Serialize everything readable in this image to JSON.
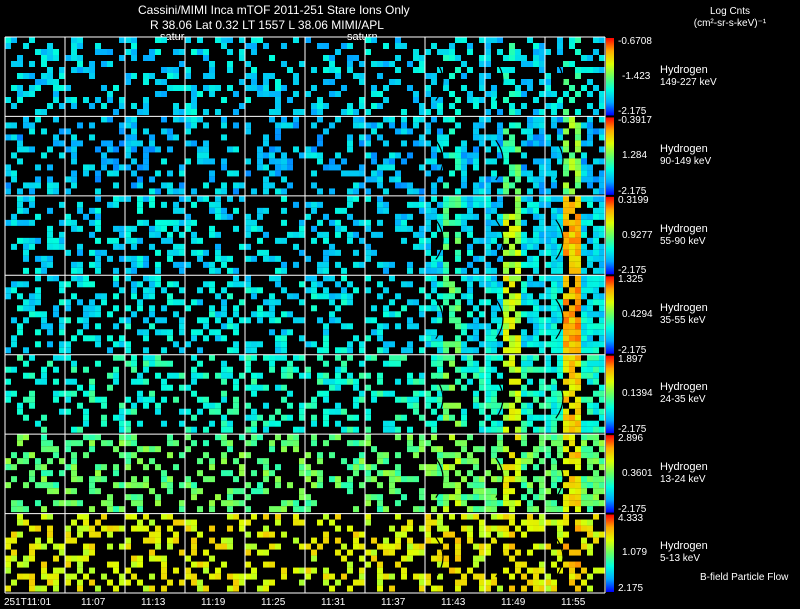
{
  "header": {
    "title": "Cassini/MIMI Inca mTOF  2011-251   Stare   Ions Only",
    "position": "R          38.06 Lat 0.32 LT 1557 L          38.06  MIMI/APL",
    "saturn_label_1": "satur",
    "saturn_label_2": "saturn",
    "units_line1": "Log Cnts",
    "units_line2": "(cm²-sr-s-keV)⁻¹"
  },
  "colors": {
    "background": "#000000",
    "grid": "#ffffff",
    "colorbar": [
      "#0000ff",
      "#00aaff",
      "#00ffdd",
      "#66ff66",
      "#ddff00",
      "#ffaa00",
      "#ff0000"
    ]
  },
  "chart_data": {
    "type": "heatmap",
    "time_labels": [
      "251T11:01",
      "11:07",
      "11:13",
      "11:19",
      "11:25",
      "11:31",
      "11:37",
      "11:43",
      "11:49",
      "11:55"
    ],
    "rows": [
      {
        "species": "Hydrogen",
        "energy": "149-227 keV",
        "cb_max": "-0.6708",
        "cb_mid": "-1.423",
        "cb_min": "-2.175",
        "level": 0.25,
        "peak": 0.15
      },
      {
        "species": "Hydrogen",
        "energy": "90-149 keV",
        "cb_max": "-0.3917",
        "cb_mid": "1.284",
        "cb_min": "-2.175",
        "level": 0.22,
        "peak": 0.35
      },
      {
        "species": "Hydrogen",
        "energy": "55-90 keV",
        "cb_max": "0.3199",
        "cb_mid": "0.9277",
        "cb_min": "-2.175",
        "level": 0.25,
        "peak": 0.6
      },
      {
        "species": "Hydrogen",
        "energy": "35-55 keV",
        "cb_max": "1.325",
        "cb_mid": "0.4294",
        "cb_min": "-2.175",
        "level": 0.28,
        "peak": 0.6
      },
      {
        "species": "Hydrogen",
        "energy": "24-35 keV",
        "cb_max": "1.897",
        "cb_mid": "0.1394",
        "cb_min": "-2.175",
        "level": 0.35,
        "peak": 0.45
      },
      {
        "species": "Hydrogen",
        "energy": "13-24 keV",
        "cb_max": "2.896",
        "cb_mid": "0.3601",
        "cb_min": "-2.175",
        "level": 0.48,
        "peak": 0.3
      },
      {
        "species": "Hydrogen",
        "energy": "5-13 keV",
        "cb_max": "4.333",
        "cb_mid": "1.079",
        "cb_min": "2.175",
        "level": 0.68,
        "peak": 0.1
      }
    ],
    "footer_note": "B-field Particle Flow",
    "grid": true
  }
}
